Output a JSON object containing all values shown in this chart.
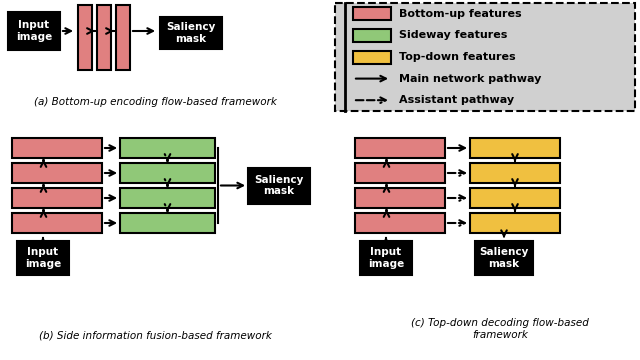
{
  "colors": {
    "pink": "#E08080",
    "green": "#90C878",
    "yellow": "#F0C040",
    "black": "#111111",
    "white": "#FFFFFF",
    "legend_bg": "#D0D0D0",
    "arrow": "#111111"
  },
  "caption_a": "(a) Bottom-up encoding flow-based framework",
  "caption_b": "(b) Side information fusion-based framework",
  "caption_c": "(c) Top-down decoding flow-based\nframework",
  "bg_color": "#FFFFFF"
}
